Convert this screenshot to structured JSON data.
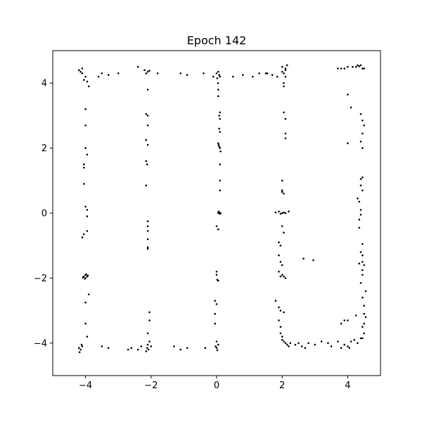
{
  "chart_data": {
    "type": "scatter",
    "title": "Epoch 142",
    "xlabel": "",
    "ylabel": "",
    "xlim": [
      -5,
      5
    ],
    "ylim": [
      -5,
      5
    ],
    "xticks": [
      -4,
      -2,
      0,
      2,
      4
    ],
    "yticks": [
      -4,
      -2,
      0,
      2,
      4
    ],
    "xtick_labels": [
      "−4",
      "−2",
      "0",
      "2",
      "4"
    ],
    "ytick_labels": [
      "−4",
      "−2",
      "0",
      "2",
      "4"
    ],
    "grid": false,
    "marker_color": "#000000",
    "series": [
      {
        "points": [
          [
            -4.2,
            4.4
          ],
          [
            -4.1,
            4.3
          ],
          [
            -4.0,
            4.2
          ],
          [
            -4.05,
            4.1
          ],
          [
            -3.95,
            4.05
          ],
          [
            -3.9,
            3.9
          ],
          [
            -4.15,
            4.35
          ],
          [
            -4.1,
            4.45
          ],
          [
            -4.0,
            3.2
          ],
          [
            -4.0,
            2.7
          ],
          [
            -4.0,
            2.0
          ],
          [
            -3.95,
            1.8
          ],
          [
            -4.05,
            1.5
          ],
          [
            -4.05,
            1.4
          ],
          [
            -4.05,
            0.9
          ],
          [
            -4.0,
            0.2
          ],
          [
            -3.95,
            0.1
          ],
          [
            -3.95,
            -0.1
          ],
          [
            -3.95,
            -0.55
          ],
          [
            -4.05,
            -0.65
          ],
          [
            -4.1,
            -0.75
          ],
          [
            -4.05,
            -1.95
          ],
          [
            -4.0,
            -1.9
          ],
          [
            -3.95,
            -1.95
          ],
          [
            -4.0,
            -2.0
          ],
          [
            -3.98,
            -1.88
          ],
          [
            -4.02,
            -2.02
          ],
          [
            -3.93,
            -1.92
          ],
          [
            -4.08,
            -1.98
          ],
          [
            -3.9,
            -2.5
          ],
          [
            -4.0,
            -2.75
          ],
          [
            -4.0,
            -3.4
          ],
          [
            -3.95,
            -3.8
          ],
          [
            -4.2,
            -4.15
          ],
          [
            -4.15,
            -4.2
          ],
          [
            -4.1,
            -4.1
          ],
          [
            -4.18,
            -4.28
          ],
          [
            -4.12,
            -4.05
          ],
          [
            -3.6,
            4.2
          ],
          [
            -3.5,
            4.3
          ],
          [
            -3.0,
            4.3
          ],
          [
            -3.3,
            4.25
          ],
          [
            -2.4,
            4.5
          ],
          [
            -2.2,
            4.4
          ],
          [
            -2.1,
            4.35
          ],
          [
            -2.15,
            4.3
          ],
          [
            -2.05,
            4.38
          ],
          [
            -1.8,
            4.3
          ],
          [
            -2.1,
            3.8
          ],
          [
            -2.15,
            3.05
          ],
          [
            -2.1,
            3.0
          ],
          [
            -2.1,
            2.7
          ],
          [
            -2.15,
            2.25
          ],
          [
            -2.1,
            2.1
          ],
          [
            -2.15,
            1.6
          ],
          [
            -2.12,
            1.5
          ],
          [
            -2.15,
            0.85
          ],
          [
            -2.1,
            -0.25
          ],
          [
            -2.1,
            -0.4
          ],
          [
            -2.1,
            -0.55
          ],
          [
            -2.1,
            -0.8
          ],
          [
            -2.1,
            -1.05
          ],
          [
            -2.1,
            -1.1
          ],
          [
            -2.05,
            -3.05
          ],
          [
            -2.05,
            -3.3
          ],
          [
            -2.1,
            -3.7
          ],
          [
            -2.05,
            -3.95
          ],
          [
            -2.1,
            -4.05
          ],
          [
            -2.12,
            -4.15
          ],
          [
            -2.08,
            -4.2
          ],
          [
            -2.15,
            -4.25
          ],
          [
            -2.0,
            -4.1
          ],
          [
            -3.5,
            -4.1
          ],
          [
            -3.3,
            -4.15
          ],
          [
            -2.7,
            -4.2
          ],
          [
            -2.6,
            -4.15
          ],
          [
            -2.4,
            -4.2
          ],
          [
            -2.3,
            -4.1
          ],
          [
            -1.3,
            -4.1
          ],
          [
            -1.1,
            -4.2
          ],
          [
            -0.9,
            -4.15
          ],
          [
            -0.35,
            -4.15
          ],
          [
            -1.1,
            4.3
          ],
          [
            -0.9,
            4.25
          ],
          [
            -0.4,
            4.3
          ],
          [
            -0.1,
            4.2
          ],
          [
            0.0,
            4.3
          ],
          [
            0.05,
            4.35
          ],
          [
            0.08,
            4.25
          ],
          [
            0.1,
            4.2
          ],
          [
            0.02,
            4.15
          ],
          [
            0.04,
            4.0
          ],
          [
            0.05,
            3.8
          ],
          [
            0.05,
            3.6
          ],
          [
            0.1,
            3.1
          ],
          [
            0.08,
            3.0
          ],
          [
            0.1,
            2.9
          ],
          [
            0.08,
            2.6
          ],
          [
            0.1,
            2.5
          ],
          [
            0.05,
            2.15
          ],
          [
            0.08,
            2.05
          ],
          [
            0.1,
            2.0
          ],
          [
            0.12,
            1.9
          ],
          [
            0.06,
            2.1
          ],
          [
            0.1,
            1.5
          ],
          [
            0.1,
            1.0
          ],
          [
            0.1,
            0.7
          ],
          [
            0.05,
            0.0
          ],
          [
            0.08,
            0.02
          ],
          [
            0.1,
            -0.02
          ],
          [
            0.06,
            0.05
          ],
          [
            0.12,
            0.0
          ],
          [
            0.0,
            -0.4
          ],
          [
            0.05,
            -0.5
          ],
          [
            0.0,
            -1.8
          ],
          [
            0.0,
            -1.9
          ],
          [
            0.02,
            -2.05
          ],
          [
            0.05,
            -2.08
          ],
          [
            -0.05,
            -2.7
          ],
          [
            0.0,
            -2.8
          ],
          [
            -0.05,
            -3.1
          ],
          [
            -0.05,
            -3.4
          ],
          [
            0.0,
            -3.95
          ],
          [
            0.05,
            -4.05
          ],
          [
            0.0,
            -4.15
          ],
          [
            0.02,
            -4.22
          ],
          [
            -0.03,
            -4.1
          ],
          [
            0.5,
            4.2
          ],
          [
            0.8,
            4.25
          ],
          [
            1.1,
            4.2
          ],
          [
            1.3,
            4.3
          ],
          [
            1.5,
            4.3
          ],
          [
            1.55,
            4.3
          ],
          [
            1.7,
            4.25
          ],
          [
            1.85,
            4.2
          ],
          [
            2.0,
            4.35
          ],
          [
            2.1,
            4.4
          ],
          [
            2.0,
            4.5
          ],
          [
            2.05,
            4.3
          ],
          [
            2.1,
            4.45
          ],
          [
            2.15,
            4.55
          ],
          [
            2.1,
            4.2
          ],
          [
            2.05,
            4.0
          ],
          [
            2.05,
            3.9
          ],
          [
            2.05,
            3.1
          ],
          [
            2.1,
            2.9
          ],
          [
            2.1,
            2.45
          ],
          [
            2.1,
            2.3
          ],
          [
            2.0,
            1.0
          ],
          [
            2.0,
            0.7
          ],
          [
            2.05,
            0.6
          ],
          [
            2.0,
            0.65
          ],
          [
            1.8,
            0.02
          ],
          [
            1.9,
            0.05
          ],
          [
            2.0,
            0.0
          ],
          [
            2.05,
            0.02
          ],
          [
            2.1,
            0.0
          ],
          [
            2.2,
            0.05
          ],
          [
            1.95,
            -0.02
          ],
          [
            2.0,
            -0.4
          ],
          [
            2.05,
            -0.6
          ],
          [
            1.9,
            -0.9
          ],
          [
            1.95,
            -1.0
          ],
          [
            1.9,
            -1.3
          ],
          [
            1.95,
            -1.5
          ],
          [
            2.0,
            -1.6
          ],
          [
            1.9,
            -1.8
          ],
          [
            1.95,
            -1.95
          ],
          [
            2.0,
            -1.9
          ],
          [
            2.05,
            -1.95
          ],
          [
            2.1,
            -2.0
          ],
          [
            1.8,
            -2.7
          ],
          [
            1.9,
            -2.9
          ],
          [
            1.95,
            -3.0
          ],
          [
            2.05,
            -3.05
          ],
          [
            1.9,
            -3.3
          ],
          [
            1.95,
            -3.5
          ],
          [
            1.95,
            -3.7
          ],
          [
            2.0,
            -3.8
          ],
          [
            2.0,
            -3.9
          ],
          [
            2.05,
            -3.95
          ],
          [
            2.1,
            -4.0
          ],
          [
            2.15,
            -4.05
          ],
          [
            2.2,
            -4.1
          ],
          [
            2.25,
            -4.0
          ],
          [
            2.4,
            -4.05
          ],
          [
            2.5,
            -4.0
          ],
          [
            2.6,
            -4.1
          ],
          [
            2.7,
            -4.15
          ],
          [
            2.8,
            -4.0
          ],
          [
            3.0,
            -4.05
          ],
          [
            3.2,
            -3.95
          ],
          [
            3.4,
            -4.0
          ],
          [
            3.5,
            -4.1
          ],
          [
            3.7,
            -3.95
          ],
          [
            3.9,
            -4.05
          ],
          [
            4.0,
            -4.1
          ],
          [
            4.1,
            -3.95
          ],
          [
            4.2,
            -3.9
          ],
          [
            4.3,
            -4.0
          ],
          [
            4.4,
            -3.85
          ],
          [
            2.65,
            -1.4
          ],
          [
            2.95,
            -1.45
          ],
          [
            3.7,
            4.45
          ],
          [
            3.8,
            4.45
          ],
          [
            3.9,
            4.45
          ],
          [
            4.0,
            4.5
          ],
          [
            4.15,
            4.5
          ],
          [
            4.25,
            4.5
          ],
          [
            4.3,
            4.55
          ],
          [
            4.35,
            4.52
          ],
          [
            4.4,
            4.55
          ],
          [
            4.45,
            4.45
          ],
          [
            4.5,
            4.45
          ],
          [
            4.0,
            3.65
          ],
          [
            4.1,
            3.25
          ],
          [
            4.4,
            3.05
          ],
          [
            4.45,
            2.85
          ],
          [
            4.5,
            2.7
          ],
          [
            4.45,
            2.45
          ],
          [
            4.4,
            2.2
          ],
          [
            4.45,
            2.0
          ],
          [
            4.0,
            2.15
          ],
          [
            4.45,
            1.1
          ],
          [
            4.4,
            1.05
          ],
          [
            4.4,
            0.85
          ],
          [
            4.45,
            0.7
          ],
          [
            4.3,
            0.45
          ],
          [
            4.35,
            0.35
          ],
          [
            4.4,
            0.1
          ],
          [
            4.4,
            -0.05
          ],
          [
            4.35,
            -0.2
          ],
          [
            4.35,
            -0.45
          ],
          [
            4.45,
            -0.95
          ],
          [
            4.4,
            -1.2
          ],
          [
            4.45,
            -1.3
          ],
          [
            4.45,
            -1.5
          ],
          [
            4.35,
            -1.55
          ],
          [
            4.5,
            -1.6
          ],
          [
            4.45,
            -1.75
          ],
          [
            4.45,
            -1.9
          ],
          [
            4.4,
            -2.15
          ],
          [
            4.55,
            -2.4
          ],
          [
            4.45,
            -2.6
          ],
          [
            4.5,
            -2.85
          ],
          [
            4.5,
            -3.1
          ],
          [
            4.55,
            -3.2
          ],
          [
            4.5,
            -3.4
          ],
          [
            4.45,
            -3.5
          ],
          [
            4.5,
            -3.7
          ],
          [
            4.45,
            -3.85
          ],
          [
            3.8,
            -3.4
          ],
          [
            3.9,
            -3.3
          ],
          [
            4.0,
            -3.3
          ],
          [
            4.25,
            -3.15
          ],
          [
            4.05,
            -4.15
          ],
          [
            3.8,
            -4.15
          ]
        ]
      }
    ]
  }
}
